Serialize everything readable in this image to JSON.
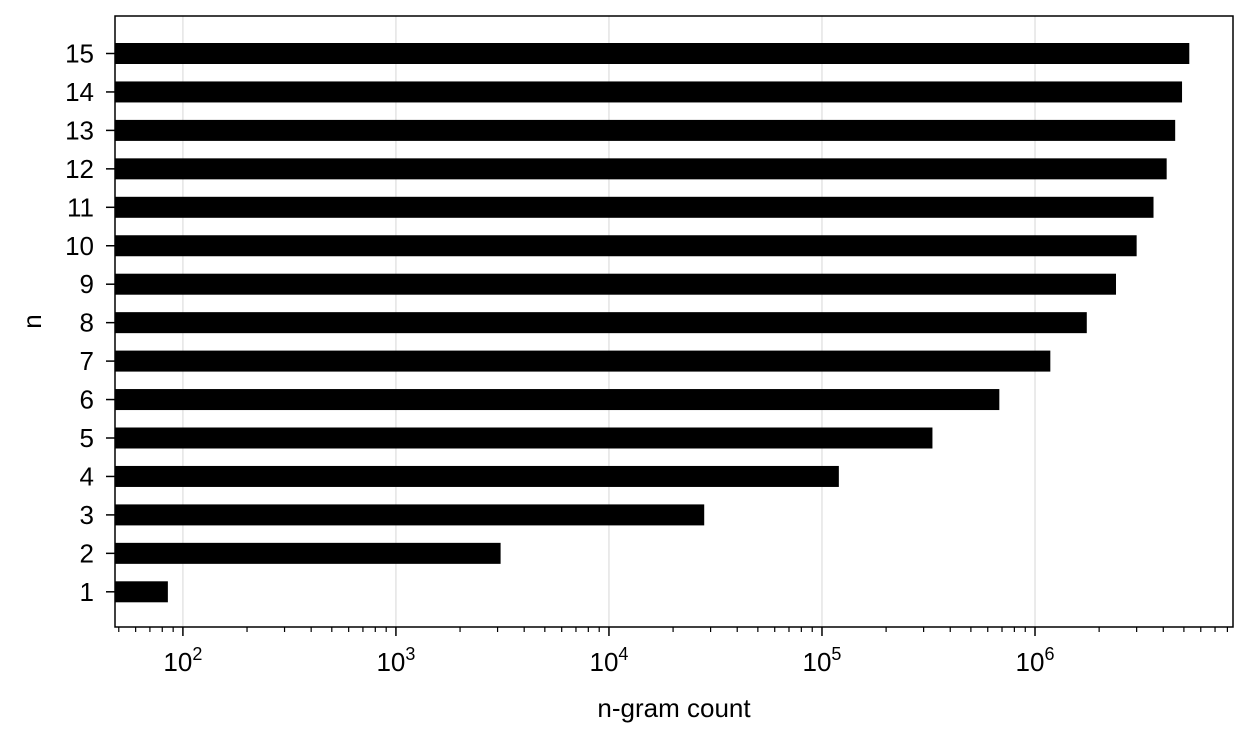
{
  "chart_data": {
    "type": "bar",
    "orientation": "horizontal",
    "xlabel": "n-gram count",
    "ylabel": "n",
    "x_scale": "log",
    "xlim": [
      48,
      8500000
    ],
    "categories": [
      "1",
      "2",
      "3",
      "4",
      "5",
      "6",
      "7",
      "8",
      "9",
      "10",
      "11",
      "12",
      "13",
      "14",
      "15"
    ],
    "values": [
      85,
      3100,
      28000,
      120000,
      330000,
      680000,
      1180000,
      1750000,
      2400000,
      3000000,
      3600000,
      4150000,
      4550000,
      4900000,
      5300000
    ],
    "x_ticks": [
      {
        "mantissa": "10",
        "exponent": "2",
        "value": 100
      },
      {
        "mantissa": "10",
        "exponent": "3",
        "value": 1000
      },
      {
        "mantissa": "10",
        "exponent": "4",
        "value": 10000
      },
      {
        "mantissa": "10",
        "exponent": "5",
        "value": 100000
      },
      {
        "mantissa": "10",
        "exponent": "6",
        "value": 1000000
      }
    ],
    "grid": "x-major",
    "bar_color": "#000000",
    "grid_color": "#dddddd"
  }
}
